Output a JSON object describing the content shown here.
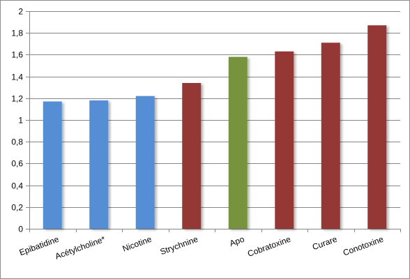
{
  "chart_data": {
    "type": "bar",
    "categories": [
      "Epibatidine",
      "Acétylcholine*",
      "Nicotine",
      "Strychnine",
      "Apo",
      "Cobratoxine",
      "Curare",
      "Conotoxine"
    ],
    "values": [
      1.17,
      1.18,
      1.22,
      1.34,
      1.58,
      1.63,
      1.71,
      1.87
    ],
    "bar_colors": [
      "#558ED5",
      "#558ED5",
      "#558ED5",
      "#953735",
      "#77933C",
      "#953735",
      "#953735",
      "#953735"
    ],
    "ylim": [
      0,
      2
    ],
    "yticks": [
      "0",
      "0,2",
      "0,4",
      "0,6",
      "0,8",
      "1",
      "1,2",
      "1,4",
      "1,6",
      "1,8",
      "2"
    ],
    "grid": true,
    "title": "",
    "xlabel": "",
    "ylabel": ""
  }
}
